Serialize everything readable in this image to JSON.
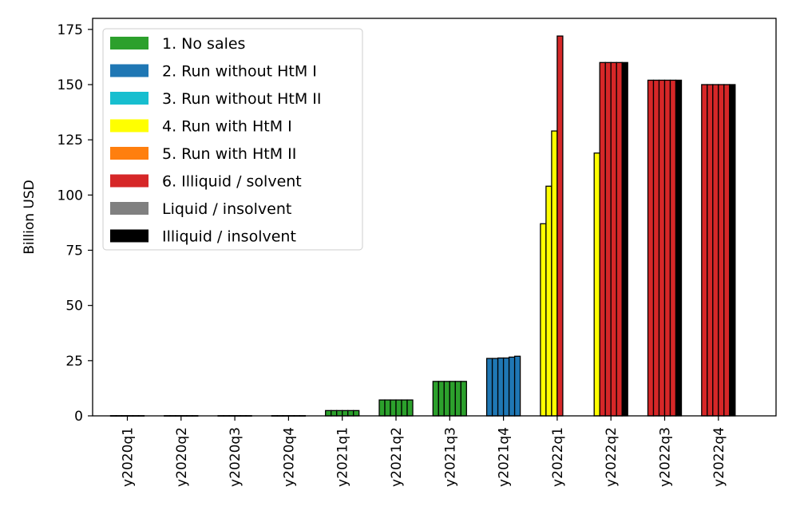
{
  "chart_data": {
    "type": "bar",
    "title": "",
    "xlabel": "",
    "ylabel": "Billion USD",
    "ylim": [
      0,
      180
    ],
    "yticks": [
      0,
      25,
      50,
      75,
      100,
      125,
      150,
      175
    ],
    "ytick_labels": [
      "0",
      "25",
      "50",
      "75",
      "100",
      "125",
      "150",
      "175"
    ],
    "grid": false,
    "legend_position": "top-left",
    "categories": [
      "y2020q1",
      "y2020q2",
      "y2020q3",
      "y2020q4",
      "y2021q1",
      "y2021q2",
      "y2021q3",
      "y2021q4",
      "y2022q1",
      "y2022q2",
      "y2022q3",
      "y2022q4"
    ],
    "legend": [
      {
        "label": "1. No sales",
        "color": "#2ca02c"
      },
      {
        "label": "2. Run without HtM I",
        "color": "#1f77b4"
      },
      {
        "label": "3. Run without HtM II",
        "color": "#17becf"
      },
      {
        "label": "4. Run with HtM I",
        "color": "#ffff00"
      },
      {
        "label": "5. Run with HtM II",
        "color": "#ff7f0e"
      },
      {
        "label": "6. Illiquid / solvent",
        "color": "#d62728"
      },
      {
        "label": "Liquid / insolvent",
        "color": "#808080"
      },
      {
        "label": "Illiquid / insolvent",
        "color": "#000000"
      }
    ],
    "bars_per_group": 6,
    "groups": [
      {
        "category": "y2020q1",
        "values": [
          0.1,
          0.1,
          0.1,
          0.1,
          0.1,
          0.1
        ],
        "colors": [
          "#2ca02c",
          "#2ca02c",
          "#2ca02c",
          "#2ca02c",
          "#2ca02c",
          "#2ca02c"
        ]
      },
      {
        "category": "y2020q2",
        "values": [
          0.1,
          0.1,
          0.1,
          0.1,
          0.1,
          0.1
        ],
        "colors": [
          "#2ca02c",
          "#2ca02c",
          "#2ca02c",
          "#2ca02c",
          "#2ca02c",
          "#2ca02c"
        ]
      },
      {
        "category": "y2020q3",
        "values": [
          0.1,
          0.1,
          0.1,
          0.1,
          0.1,
          0.1
        ],
        "colors": [
          "#2ca02c",
          "#2ca02c",
          "#2ca02c",
          "#2ca02c",
          "#2ca02c",
          "#2ca02c"
        ]
      },
      {
        "category": "y2020q4",
        "values": [
          0.1,
          0.1,
          0.1,
          0.1,
          0.1,
          0.1
        ],
        "colors": [
          "#2ca02c",
          "#2ca02c",
          "#2ca02c",
          "#2ca02c",
          "#2ca02c",
          "#2ca02c"
        ]
      },
      {
        "category": "y2021q1",
        "values": [
          2.4,
          2.4,
          2.4,
          2.4,
          2.4,
          2.4
        ],
        "colors": [
          "#2ca02c",
          "#2ca02c",
          "#2ca02c",
          "#2ca02c",
          "#2ca02c",
          "#2ca02c"
        ]
      },
      {
        "category": "y2021q2",
        "values": [
          7.2,
          7.2,
          7.2,
          7.2,
          7.2,
          7.2
        ],
        "colors": [
          "#2ca02c",
          "#2ca02c",
          "#2ca02c",
          "#2ca02c",
          "#2ca02c",
          "#2ca02c"
        ]
      },
      {
        "category": "y2021q3",
        "values": [
          15.6,
          15.6,
          15.6,
          15.6,
          15.6,
          15.6
        ],
        "colors": [
          "#2ca02c",
          "#2ca02c",
          "#2ca02c",
          "#2ca02c",
          "#2ca02c",
          "#2ca02c"
        ]
      },
      {
        "category": "y2021q4",
        "values": [
          26.0,
          26.0,
          26.2,
          26.2,
          26.6,
          27.0
        ],
        "colors": [
          "#1f77b4",
          "#1f77b4",
          "#1f77b4",
          "#1f77b4",
          "#1f77b4",
          "#1f77b4"
        ]
      },
      {
        "category": "y2022q1",
        "values": [
          87,
          104,
          129,
          172,
          0,
          0
        ],
        "colors": [
          "#ffff00",
          "#ffff00",
          "#ffff00",
          "#d62728",
          "#ffffff",
          "#ffffff"
        ]
      },
      {
        "category": "y2022q2",
        "values": [
          119,
          160,
          160,
          160,
          160,
          160
        ],
        "colors": [
          "#ffff00",
          "#d62728",
          "#d62728",
          "#d62728",
          "#d62728",
          "#000000"
        ]
      },
      {
        "category": "y2022q3",
        "values": [
          152,
          152,
          152,
          152,
          152,
          152
        ],
        "colors": [
          "#d62728",
          "#d62728",
          "#d62728",
          "#d62728",
          "#d62728",
          "#000000"
        ]
      },
      {
        "category": "y2022q4",
        "values": [
          150,
          150,
          150,
          150,
          150,
          150
        ],
        "colors": [
          "#d62728",
          "#d62728",
          "#d62728",
          "#d62728",
          "#d62728",
          "#000000"
        ]
      }
    ]
  }
}
